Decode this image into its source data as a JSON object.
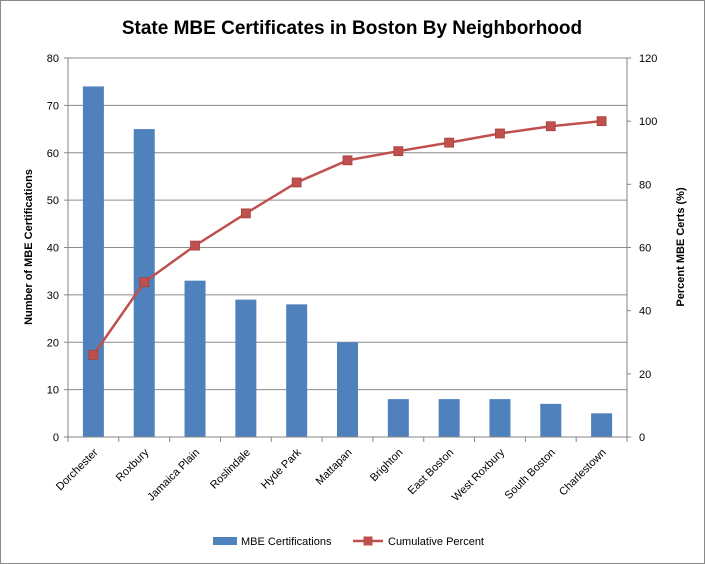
{
  "chart_data": {
    "type": "bar",
    "title": "State MBE Certificates in Boston By Neighborhood",
    "categories": [
      "Dorchester",
      "Roxbury",
      "Jamaica Plain",
      "Roslindale",
      "Hyde Park",
      "Mattapan",
      "Brighton",
      "East Boston",
      "West Roxbury",
      "South Boston",
      "Charlestown"
    ],
    "series": [
      {
        "name": "MBE Certifications",
        "type": "bar",
        "axis": "left",
        "color": "#4f81bd",
        "values": [
          74,
          65,
          33,
          29,
          28,
          20,
          8,
          8,
          8,
          7,
          5
        ]
      },
      {
        "name": "Cumulative Percent",
        "type": "line",
        "axis": "right",
        "color": "#c0504d",
        "values": [
          26,
          49,
          60.6,
          70.8,
          80.6,
          87.6,
          90.5,
          93.2,
          96.1,
          98.4,
          100
        ]
      }
    ],
    "ylabel": "Number of MBE Certifications",
    "ylim": [
      0,
      80
    ],
    "yticks": [
      "0",
      "10",
      "20",
      "30",
      "40",
      "50",
      "60",
      "70",
      "80"
    ],
    "y2label": "Percent MBE Certs (%)",
    "y2lim": [
      0,
      120
    ],
    "y2ticks": [
      "0",
      "20",
      "40",
      "60",
      "80",
      "100",
      "120"
    ],
    "grid": true,
    "legend": "bottom"
  }
}
